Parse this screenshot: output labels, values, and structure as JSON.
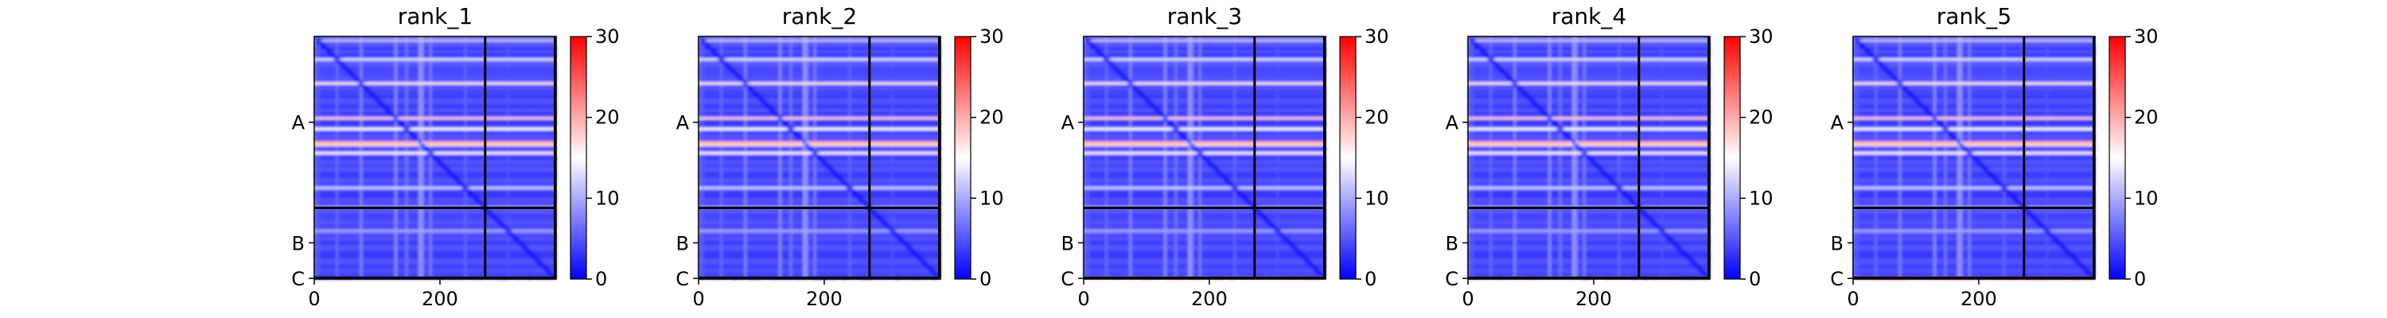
{
  "chart_data": [
    {
      "type": "heatmap",
      "title": "rank_1",
      "xticks": [
        0,
        200
      ],
      "xlim": [
        0,
        385
      ],
      "chain_labels": [
        "A",
        "B",
        "C"
      ],
      "chain_boundaries": [
        0,
        272,
        383,
        385
      ],
      "colorbar": {
        "ticks": [
          0,
          10,
          20,
          30
        ],
        "range": [
          0,
          30
        ],
        "colormap": "bwr"
      },
      "c_band_mean": 4,
      "grid": false
    },
    {
      "type": "heatmap",
      "title": "rank_2",
      "xticks": [
        0,
        200
      ],
      "xlim": [
        0,
        385
      ],
      "chain_labels": [
        "A",
        "B",
        "C"
      ],
      "chain_boundaries": [
        0,
        272,
        383,
        385
      ],
      "colorbar": {
        "ticks": [
          0,
          10,
          20,
          30
        ],
        "range": [
          0,
          30
        ],
        "colormap": "bwr"
      },
      "c_band_mean": 4,
      "grid": false
    },
    {
      "type": "heatmap",
      "title": "rank_3",
      "xticks": [
        0,
        200
      ],
      "xlim": [
        0,
        385
      ],
      "chain_labels": [
        "A",
        "B",
        "C"
      ],
      "chain_boundaries": [
        0,
        272,
        383,
        385
      ],
      "colorbar": {
        "ticks": [
          0,
          10,
          20,
          30
        ],
        "range": [
          0,
          30
        ],
        "colormap": "bwr"
      },
      "c_band_mean": 20,
      "grid": false
    },
    {
      "type": "heatmap",
      "title": "rank_4",
      "xticks": [
        0,
        200
      ],
      "xlim": [
        0,
        385
      ],
      "chain_labels": [
        "A",
        "B",
        "C"
      ],
      "chain_boundaries": [
        0,
        272,
        383,
        385
      ],
      "colorbar": {
        "ticks": [
          0,
          10,
          20,
          30
        ],
        "range": [
          0,
          30
        ],
        "colormap": "bwr"
      },
      "c_band_mean": 8,
      "grid": false
    },
    {
      "type": "heatmap",
      "title": "rank_5",
      "xticks": [
        0,
        200
      ],
      "xlim": [
        0,
        385
      ],
      "chain_labels": [
        "A",
        "B",
        "C"
      ],
      "chain_boundaries": [
        0,
        272,
        383,
        385
      ],
      "colorbar": {
        "ticks": [
          0,
          10,
          20,
          30
        ],
        "range": [
          0,
          30
        ],
        "colormap": "bwr"
      },
      "c_band_mean": 27,
      "grid": false
    }
  ],
  "colors": {
    "low": "#0000ff",
    "mid": "#ffffff",
    "high": "#ff0000",
    "divider": "#000000"
  }
}
